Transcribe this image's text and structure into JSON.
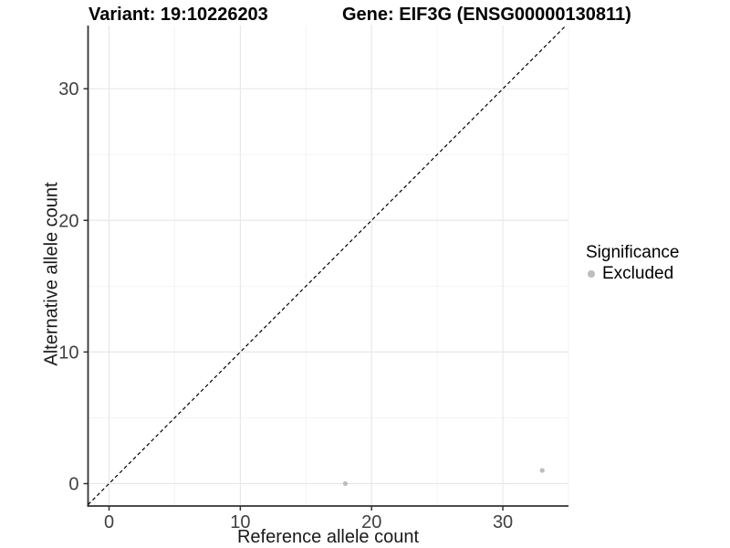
{
  "chart_data": {
    "type": "scatter",
    "title_left": "Variant: 19:10226203",
    "title_right": "Gene: EIF3G (ENSG00000130811)",
    "xlabel": "Reference allele count",
    "ylabel": "Alternative allele count",
    "xlim": [
      -1.6,
      35.0
    ],
    "ylim": [
      -1.7,
      34.8
    ],
    "x_ticks": [
      0,
      10,
      20,
      30
    ],
    "y_ticks": [
      0,
      10,
      20,
      30
    ],
    "x_minor_ticks": [
      5,
      15,
      25,
      35
    ],
    "y_minor_ticks": [
      5,
      15,
      25
    ],
    "grid": true,
    "background": "#ffffff",
    "grid_color_major": "#e8e8e8",
    "grid_color_minor": "#f3f3f3",
    "axis_color": "#333333",
    "tick_label_color": "#404040",
    "identity_line": {
      "type": "y=x",
      "style": "dashed",
      "color": "#000000"
    },
    "series": [
      {
        "name": "Excluded",
        "color": "#bdbdbd",
        "marker": "circle",
        "points": [
          {
            "x": 18,
            "y": 0
          },
          {
            "x": 33,
            "y": 1
          }
        ]
      }
    ],
    "legend": {
      "title": "Significance",
      "position": "right",
      "entries": [
        {
          "label": "Excluded",
          "color": "#bdbdbd"
        }
      ]
    }
  }
}
